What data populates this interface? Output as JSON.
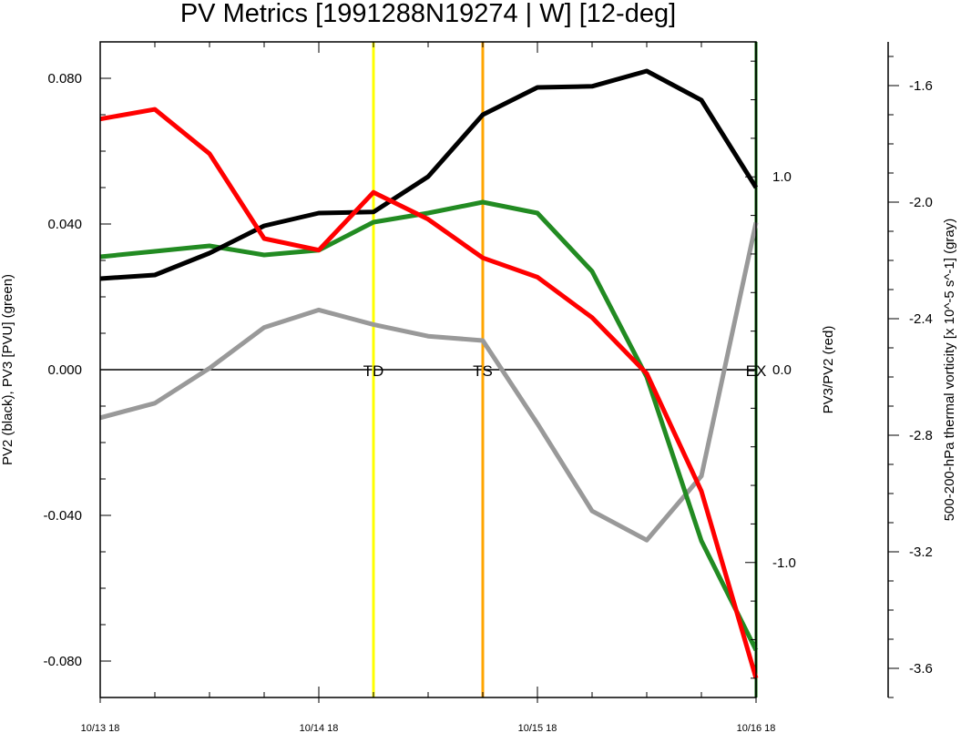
{
  "chart_data": {
    "type": "line",
    "title": "PV Metrics [1991288N19274 | W] [12-deg]",
    "x": [
      0,
      0.25,
      0.5,
      0.75,
      1.0,
      1.25,
      1.5,
      1.75,
      2.0,
      2.25,
      2.5,
      2.75,
      3.0
    ],
    "x_tick_labels": [
      "10/13 18",
      "10/14 18",
      "10/15 18",
      "10/16 18"
    ],
    "xlim": [
      0,
      3
    ],
    "left_axis": {
      "label": "PV2 (black), PV3 [PVU] (green)",
      "ylim": [
        -0.09,
        0.09
      ],
      "major_ticks": [
        -0.08,
        -0.04,
        0.0,
        0.04,
        0.08
      ],
      "tick_labels": [
        "-0.080",
        "-0.040",
        "0.000",
        "0.040",
        "0.080"
      ]
    },
    "right_axis": {
      "label": "PV3/PV2 (red)",
      "ylim": [
        -1.7,
        1.7
      ],
      "major_ticks": [
        -1.0,
        0.0,
        1.0
      ],
      "tick_labels": [
        "-1.0",
        "0.0",
        "1.0"
      ]
    },
    "outer_axis": {
      "label": "500-200-hPa thermal vorticity [x 10^-5 s^-1] (gray)",
      "ylim": [
        -3.7,
        -1.45
      ],
      "major_ticks": [
        -3.6,
        -3.2,
        -2.8,
        -2.4,
        -2.0,
        -1.6
      ],
      "tick_labels": [
        "-3.6",
        "-3.2",
        "-2.8",
        "-2.4",
        "-2.0",
        "-1.6"
      ]
    },
    "series": [
      {
        "name": "PV2",
        "color": "#000000",
        "axis": "left",
        "values": [
          0.025,
          0.026,
          0.032,
          0.0395,
          0.043,
          0.0433,
          0.053,
          0.07,
          0.0775,
          0.0778,
          0.082,
          0.074,
          0.05
        ]
      },
      {
        "name": "PV3",
        "color": "#228b22",
        "axis": "left",
        "values": [
          0.031,
          0.0325,
          0.034,
          0.0315,
          0.0328,
          0.0405,
          0.043,
          0.046,
          0.043,
          0.027,
          -0.002,
          -0.047,
          -0.077
        ]
      },
      {
        "name": "PV3/PV2",
        "color": "#ff0000",
        "axis": "right",
        "values": [
          1.3,
          1.35,
          1.12,
          0.68,
          0.62,
          0.92,
          0.78,
          0.58,
          0.48,
          0.27,
          -0.02,
          -0.63,
          -1.6
        ]
      },
      {
        "name": "Thermal vorticity",
        "color": "#999999",
        "axis": "outer",
        "values": [
          -2.74,
          -2.69,
          -2.57,
          -2.43,
          -2.37,
          -2.42,
          -2.46,
          -2.475,
          -2.76,
          -3.06,
          -3.16,
          -2.94,
          -2.07
        ]
      }
    ],
    "events": [
      {
        "label": "TD",
        "x": 1.25,
        "color": "#ffff00"
      },
      {
        "label": "TS",
        "x": 1.75,
        "color": "#ffa500"
      },
      {
        "label": "EX",
        "x": 3.0,
        "color": "#006400"
      }
    ]
  }
}
